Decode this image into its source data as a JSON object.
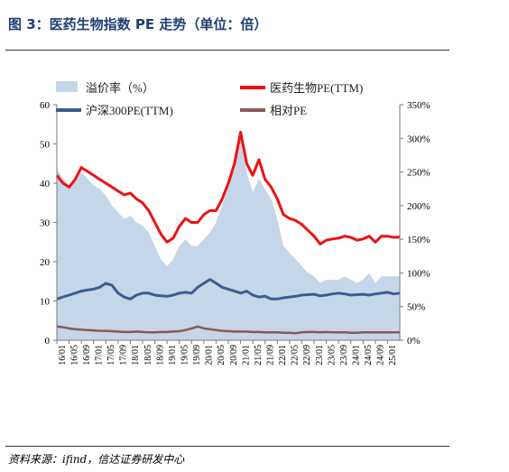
{
  "figure": {
    "title": "图 3：医药生物指数 PE 走势（单位：倍）",
    "source": "资料来源：ifind，信达证券研发中心"
  },
  "chart_data": {
    "type": "line",
    "left_axis": {
      "min": 0,
      "max": 60,
      "ticks": [
        "0",
        "10",
        "20",
        "30",
        "40",
        "50",
        "60"
      ]
    },
    "right_axis": {
      "min": 0,
      "max": 350,
      "ticks": [
        "0%",
        "50%",
        "100%",
        "150%",
        "200%",
        "250%",
        "300%",
        "350%"
      ]
    },
    "x_tick_labels": [
      "16/01",
      "16/05",
      "16/09",
      "17/01",
      "17/05",
      "17/09",
      "18/01",
      "18/05",
      "18/09",
      "19/01",
      "19/05",
      "19/09",
      "20/01",
      "20/05",
      "20/09",
      "21/01",
      "21/05",
      "21/09",
      "22/01",
      "22/05",
      "22/09",
      "23/01",
      "23/05",
      "23/09",
      "24/01",
      "24/05",
      "24/09",
      "25/01"
    ],
    "legend": [
      {
        "name": "溢价率（%）",
        "color": "#c5d6e8",
        "kind": "area",
        "axis": "right"
      },
      {
        "name": "医药生物PE(TTM)",
        "color": "#ee1111",
        "kind": "line",
        "axis": "left"
      },
      {
        "name": "沪深300PE(TTM)",
        "color": "#3a5e8c",
        "kind": "line",
        "axis": "left"
      },
      {
        "name": "相对PE",
        "color": "#8b5a5a",
        "kind": "line",
        "axis": "left"
      }
    ],
    "x": [
      0,
      2,
      4,
      6,
      8,
      10,
      12,
      14,
      16,
      18,
      20,
      22,
      24,
      26,
      28,
      30,
      32,
      34,
      36,
      38,
      40,
      42,
      44,
      46,
      48,
      50,
      52,
      54,
      56,
      58,
      60,
      62,
      64,
      66,
      68,
      70,
      72,
      74,
      76,
      78,
      80,
      82,
      84,
      86,
      88,
      90,
      92,
      94,
      96,
      98,
      100,
      102,
      104,
      106,
      108,
      110,
      112
    ],
    "series": [
      {
        "name": "医药生物PE(TTM)",
        "values": [
          42,
          40,
          39,
          41,
          44,
          43,
          42,
          41,
          40,
          39,
          38,
          37,
          37.5,
          36,
          35,
          33,
          30,
          27,
          25,
          26,
          29,
          31,
          30,
          30,
          32,
          33,
          33,
          36,
          40,
          45,
          53,
          45,
          42,
          46,
          41,
          39,
          36,
          32,
          31,
          30.5,
          29.5,
          28,
          26.5,
          24.5,
          25.5,
          25.8,
          26,
          26.5,
          26.2,
          25.5,
          25.8,
          26.5,
          25,
          26.5,
          26.5,
          26.2,
          26.3
        ]
      },
      {
        "name": "沪深300PE(TTM)",
        "values": [
          10.5,
          11,
          11.5,
          12,
          12.5,
          12.8,
          13,
          13.5,
          14.5,
          14,
          12,
          11,
          10.5,
          11.5,
          12,
          12,
          11.5,
          11.3,
          11.2,
          11.5,
          12,
          12.2,
          12,
          13.5,
          14.5,
          15.5,
          14.5,
          13.5,
          13,
          12.5,
          12,
          12.5,
          11.5,
          11,
          11.2,
          10.5,
          10.5,
          10.8,
          11,
          11.2,
          11.5,
          11.6,
          11.7,
          11.3,
          11.5,
          11.8,
          12,
          11.8,
          11.5,
          11.6,
          11.7,
          11.5,
          11.8,
          12,
          12.2,
          11.8,
          12
        ]
      },
      {
        "name": "相对PE",
        "values": [
          3.5,
          3.3,
          3,
          2.8,
          2.7,
          2.6,
          2.5,
          2.4,
          2.4,
          2.3,
          2.2,
          2.1,
          2.1,
          2.2,
          2.1,
          2,
          2,
          2.1,
          2.1,
          2.2,
          2.3,
          2.6,
          3,
          3.5,
          3,
          2.8,
          2.6,
          2.4,
          2.3,
          2.2,
          2.2,
          2.2,
          2.1,
          2.1,
          2,
          2,
          2,
          1.9,
          1.9,
          1.8,
          2,
          2.1,
          2.1,
          2,
          2.1,
          2,
          2,
          2,
          1.9,
          1.9,
          2,
          2,
          2,
          2,
          2,
          2,
          2
        ]
      },
      {
        "name": "溢价率（%）",
        "values": [
          255,
          240,
          230,
          235,
          250,
          240,
          230,
          225,
          215,
          200,
          190,
          180,
          185,
          175,
          170,
          160,
          140,
          120,
          110,
          120,
          140,
          150,
          140,
          140,
          150,
          160,
          175,
          200,
          230,
          255,
          300,
          250,
          220,
          240,
          225,
          210,
          180,
          140,
          130,
          120,
          110,
          100,
          95,
          85,
          90,
          90,
          90,
          95,
          90,
          85,
          90,
          100,
          85,
          95,
          95,
          95,
          95
        ]
      }
    ]
  }
}
